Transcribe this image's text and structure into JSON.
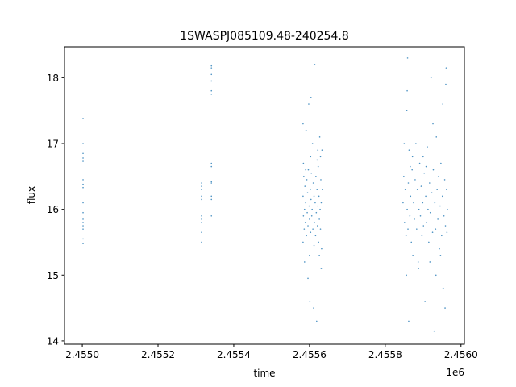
{
  "chart_data": {
    "type": "scatter",
    "title": "1SWASPJ085109.48-240254.8",
    "xlabel": "time",
    "ylabel": "flux",
    "x_offset_label": "1e6",
    "xlim": [
      2454953,
      2456009
    ],
    "ylim": [
      13.95,
      18.47
    ],
    "grid": false,
    "color": "#1f77b4",
    "xticks": [
      {
        "value": 2455000,
        "label": "2.4550"
      },
      {
        "value": 2455200,
        "label": "2.4552"
      },
      {
        "value": 2455400,
        "label": "2.4554"
      },
      {
        "value": 2455600,
        "label": "2.4556"
      },
      {
        "value": 2455800,
        "label": "2.4558"
      },
      {
        "value": 2456000,
        "label": "2.4560"
      }
    ],
    "yticks": [
      {
        "value": 14,
        "label": "14"
      },
      {
        "value": 15,
        "label": "15"
      },
      {
        "value": 16,
        "label": "16"
      },
      {
        "value": 17,
        "label": "17"
      },
      {
        "value": 18,
        "label": "18"
      }
    ],
    "points": [
      [
        2455002,
        17.38
      ],
      [
        2455002,
        17.0
      ],
      [
        2455002,
        16.85
      ],
      [
        2455002,
        16.78
      ],
      [
        2455002,
        16.73
      ],
      [
        2455002,
        16.45
      ],
      [
        2455002,
        16.38
      ],
      [
        2455002,
        16.33
      ],
      [
        2455002,
        16.1
      ],
      [
        2455002,
        15.95
      ],
      [
        2455002,
        15.85
      ],
      [
        2455002,
        15.8
      ],
      [
        2455002,
        15.75
      ],
      [
        2455002,
        15.7
      ],
      [
        2455002,
        15.55
      ],
      [
        2455002,
        15.48
      ],
      [
        2455315,
        16.4
      ],
      [
        2455315,
        16.35
      ],
      [
        2455315,
        16.3
      ],
      [
        2455315,
        16.2
      ],
      [
        2455315,
        16.15
      ],
      [
        2455315,
        15.9
      ],
      [
        2455315,
        15.85
      ],
      [
        2455315,
        15.8
      ],
      [
        2455315,
        15.65
      ],
      [
        2455315,
        15.5
      ],
      [
        2455341,
        18.18
      ],
      [
        2455341,
        18.15
      ],
      [
        2455341,
        18.05
      ],
      [
        2455341,
        17.95
      ],
      [
        2455341,
        17.8
      ],
      [
        2455341,
        17.75
      ],
      [
        2455341,
        16.7
      ],
      [
        2455341,
        16.65
      ],
      [
        2455341,
        16.42
      ],
      [
        2455341,
        16.4
      ],
      [
        2455341,
        16.2
      ],
      [
        2455341,
        16.15
      ],
      [
        2455341,
        15.9
      ],
      [
        2455583,
        16.2
      ],
      [
        2455584,
        15.9
      ],
      [
        2455585,
        16.5
      ],
      [
        2455586,
        15.7
      ],
      [
        2455587,
        16.0
      ],
      [
        2455588,
        16.35
      ],
      [
        2455589,
        15.8
      ],
      [
        2455590,
        16.1
      ],
      [
        2455591,
        17.2
      ],
      [
        2455592,
        15.6
      ],
      [
        2455593,
        16.45
      ],
      [
        2455594,
        15.95
      ],
      [
        2455595,
        16.25
      ],
      [
        2455596,
        15.75
      ],
      [
        2455597,
        16.6
      ],
      [
        2455598,
        17.6
      ],
      [
        2455599,
        16.05
      ],
      [
        2455600,
        15.85
      ],
      [
        2455601,
        14.6
      ],
      [
        2455602,
        16.3
      ],
      [
        2455603,
        15.65
      ],
      [
        2455604,
        16.15
      ],
      [
        2455605,
        16.55
      ],
      [
        2455606,
        15.9
      ],
      [
        2455607,
        16.0
      ],
      [
        2455608,
        17.0
      ],
      [
        2455609,
        15.7
      ],
      [
        2455610,
        16.4
      ],
      [
        2455611,
        14.5
      ],
      [
        2455612,
        16.2
      ],
      [
        2455613,
        15.8
      ],
      [
        2455614,
        18.2
      ],
      [
        2455615,
        16.1
      ],
      [
        2455616,
        15.6
      ],
      [
        2455617,
        16.5
      ],
      [
        2455618,
        15.95
      ],
      [
        2455619,
        14.3
      ],
      [
        2455620,
        16.3
      ],
      [
        2455621,
        15.75
      ],
      [
        2455622,
        16.05
      ],
      [
        2455623,
        16.65
      ],
      [
        2455624,
        15.5
      ],
      [
        2455625,
        16.2
      ],
      [
        2455626,
        15.85
      ],
      [
        2455627,
        17.1
      ],
      [
        2455628,
        16.0
      ],
      [
        2455629,
        15.7
      ],
      [
        2455630,
        16.45
      ],
      [
        2455631,
        16.1
      ],
      [
        2455632,
        15.4
      ],
      [
        2455633,
        16.9
      ],
      [
        2455634,
        16.3
      ],
      [
        2455583,
        15.5
      ],
      [
        2455584,
        16.7
      ],
      [
        2455600,
        15.3
      ],
      [
        2455603,
        16.8
      ],
      [
        2455612,
        15.45
      ],
      [
        2455620,
        16.75
      ],
      [
        2455626,
        15.3
      ],
      [
        2455590,
        16.6
      ],
      [
        2455596,
        14.95
      ],
      [
        2455631,
        15.1
      ],
      [
        2455604,
        17.7
      ],
      [
        2455583,
        17.3
      ],
      [
        2455587,
        15.2
      ],
      [
        2455622,
        16.9
      ],
      [
        2455629,
        16.8
      ],
      [
        2455847,
        16.1
      ],
      [
        2455849,
        16.5
      ],
      [
        2455851,
        15.8
      ],
      [
        2455853,
        16.3
      ],
      [
        2455855,
        15.6
      ],
      [
        2455857,
        17.5
      ],
      [
        2455858,
        16.0
      ],
      [
        2455859,
        18.3
      ],
      [
        2455860,
        15.7
      ],
      [
        2455861,
        16.4
      ],
      [
        2455862,
        14.3
      ],
      [
        2455863,
        16.9
      ],
      [
        2455865,
        15.9
      ],
      [
        2455867,
        16.2
      ],
      [
        2455869,
        15.5
      ],
      [
        2455871,
        16.6
      ],
      [
        2455873,
        15.3
      ],
      [
        2455875,
        16.1
      ],
      [
        2455877,
        15.85
      ],
      [
        2455879,
        16.45
      ],
      [
        2455881,
        17.0
      ],
      [
        2455883,
        15.7
      ],
      [
        2455885,
        16.3
      ],
      [
        2455887,
        15.2
      ],
      [
        2455889,
        16.0
      ],
      [
        2455891,
        16.7
      ],
      [
        2455893,
        15.9
      ],
      [
        2455895,
        16.35
      ],
      [
        2455897,
        15.6
      ],
      [
        2455899,
        16.1
      ],
      [
        2455901,
        15.75
      ],
      [
        2455903,
        16.55
      ],
      [
        2455905,
        14.6
      ],
      [
        2455907,
        16.2
      ],
      [
        2455909,
        15.8
      ],
      [
        2455911,
        16.95
      ],
      [
        2455913,
        16.0
      ],
      [
        2455915,
        15.5
      ],
      [
        2455917,
        16.4
      ],
      [
        2455919,
        15.95
      ],
      [
        2455921,
        18.0
      ],
      [
        2455923,
        16.25
      ],
      [
        2455925,
        15.65
      ],
      [
        2455927,
        16.6
      ],
      [
        2455929,
        14.15
      ],
      [
        2455931,
        16.1
      ],
      [
        2455933,
        15.7
      ],
      [
        2455935,
        17.1
      ],
      [
        2455937,
        16.3
      ],
      [
        2455939,
        15.85
      ],
      [
        2455941,
        16.5
      ],
      [
        2455943,
        15.4
      ],
      [
        2455945,
        16.05
      ],
      [
        2455947,
        16.7
      ],
      [
        2455949,
        15.6
      ],
      [
        2455951,
        16.2
      ],
      [
        2455953,
        14.8
      ],
      [
        2455955,
        15.9
      ],
      [
        2455957,
        16.45
      ],
      [
        2455959,
        15.75
      ],
      [
        2455961,
        18.15
      ],
      [
        2455962,
        16.3
      ],
      [
        2455963,
        15.65
      ],
      [
        2455964,
        16.0
      ],
      [
        2455850,
        17.0
      ],
      [
        2455856,
        15.0
      ],
      [
        2455858,
        17.8
      ],
      [
        2455872,
        16.8
      ],
      [
        2455888,
        15.1
      ],
      [
        2455900,
        16.8
      ],
      [
        2455918,
        15.2
      ],
      [
        2455926,
        17.3
      ],
      [
        2455934,
        15.0
      ],
      [
        2455946,
        15.3
      ],
      [
        2455952,
        17.6
      ],
      [
        2455958,
        14.5
      ],
      [
        2455960,
        17.9
      ],
      [
        2455866,
        16.65
      ],
      [
        2455908,
        16.65
      ]
    ]
  }
}
